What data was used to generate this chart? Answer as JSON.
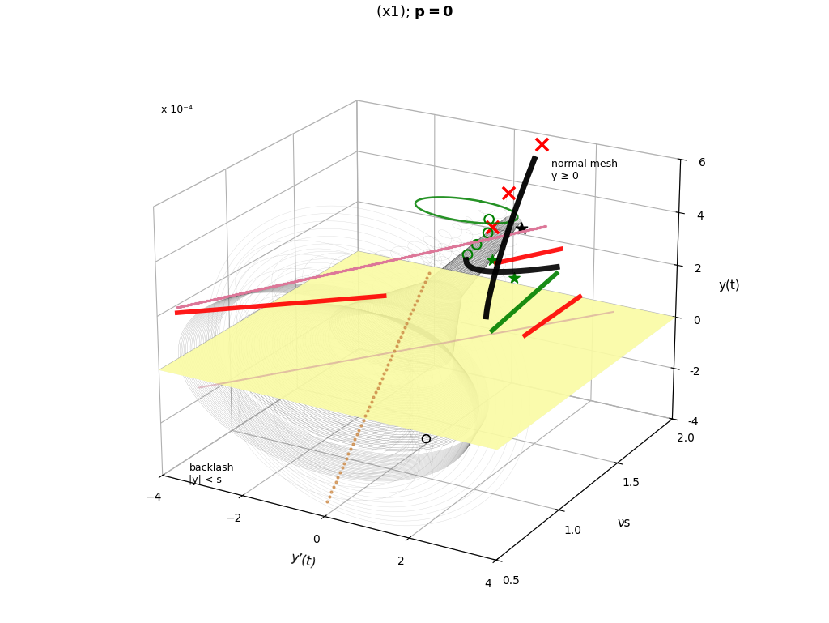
{
  "title_regular": "(x1); ",
  "title_bold": "p = 0",
  "xlabel": "y’(t)",
  "ylabel": "νs",
  "zlabel": "y(t)",
  "zscale_label": "x 10⁻⁴",
  "xlim": [
    -4,
    4
  ],
  "ylim": [
    0.5,
    2.0
  ],
  "zlim_min": -0.0004,
  "zlim_max": 0.0006,
  "xticks": [
    -4,
    -2,
    0,
    2,
    4
  ],
  "yticks": [
    0.5,
    1.0,
    1.5,
    2.0
  ],
  "zticks_vals": [
    -4,
    -2,
    0,
    2,
    4,
    6
  ],
  "normal_mesh_label": "normal mesh\ny ≥ 0",
  "backlash_label": "backlash\n|y| < s",
  "bg_color": "#ffffff",
  "blue_color": "#b8cce4",
  "yellow_color": "#ffffa0",
  "olive_color": "#d4d4a0",
  "blue_alpha": 0.38,
  "yellow_alpha": 0.85,
  "olive_alpha": 0.45,
  "view_elev": 22,
  "view_azim": -60
}
